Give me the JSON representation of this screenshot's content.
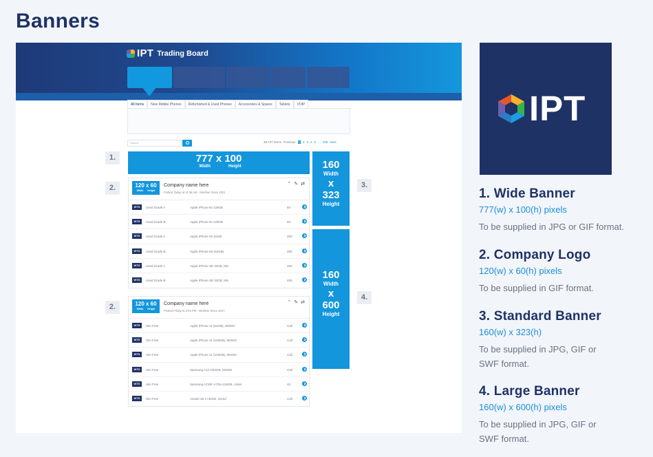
{
  "page": {
    "title": "Banners"
  },
  "mockup": {
    "logo_text": "IPT",
    "board_title": "Trading Board",
    "subtabs": [
      "All Items",
      "New Mobile Phones",
      "Refurbished & Used Phones",
      "Accessories & Spares",
      "Tablets",
      "VOIP"
    ],
    "search_placeholder": "Search",
    "pager": {
      "count": "48,737 Items",
      "prev": "Previous",
      "pages": [
        "1",
        "2",
        "3",
        "4",
        "5"
      ],
      "ellipsis": "...",
      "last": "488",
      "next": "Next"
    },
    "wide_banner": {
      "main": "777 x 100",
      "width_label": "Width",
      "height_label": "Height"
    },
    "standard_banner": {
      "w": "160",
      "width_label": "Width",
      "x": "x",
      "h": "323",
      "height_label": "Height"
    },
    "large_banner": {
      "w": "160",
      "width_label": "Width",
      "x": "x",
      "h": "600",
      "height_label": "Height"
    },
    "labels": [
      "1.",
      "2.",
      "3.",
      "2.",
      "4."
    ],
    "companies": [
      {
        "logo": {
          "main": "120 x 60",
          "w": "Width",
          "h": "Height"
        },
        "name": "Company name here",
        "meta": "Posted Today at 11:46 AM - Member Since 2021",
        "rows": [
          {
            "tag": "WTS",
            "cond": "Used Grade A",
            "product": "Apple iPhone 6s 128GB",
            "qty": "50"
          },
          {
            "tag": "WTS",
            "cond": "Used Grade B",
            "product": "Apple iPhone 6s 128GB",
            "qty": "50"
          },
          {
            "tag": "WTS",
            "cond": "Used Grade A",
            "product": "Apple iPhone 6S 64GB",
            "qty": "200"
          },
          {
            "tag": "WTS",
            "cond": "Used Grade B",
            "product": "Apple iPhone 6S (64GB)",
            "qty": "250"
          },
          {
            "tag": "WTS",
            "cond": "Used Grade A",
            "product": "Apple iPhone SE 32GB, Mix",
            "qty": "250"
          },
          {
            "tag": "WTS",
            "cond": "Used Grade B",
            "product": "Apple iPhone SE 32GB, Mix",
            "qty": "400"
          }
        ]
      },
      {
        "logo": {
          "main": "120 x 60",
          "w": "Width",
          "h": "Height"
        },
        "name": "Company name here",
        "meta": "Posted Friday at 3:04 PM - Member Since 2017",
        "rows": [
          {
            "tag": "WTS",
            "cond": "Sim Free",
            "product": "Apple iPhone 11 (64GB), MIXED",
            "qty": "Call"
          },
          {
            "tag": "WTS",
            "cond": "Sim Free",
            "product": "Apple iPhone 11 (128GB), MIXED",
            "qty": "Call"
          },
          {
            "tag": "WTS",
            "cond": "Sim Free",
            "product": "Apple iPhone 11 (128GB), MIXED",
            "qty": "Call"
          },
          {
            "tag": "WTS",
            "cond": "Sim Free",
            "product": "Samsung A12 4/64GB, MIXED",
            "qty": "Call"
          },
          {
            "tag": "WTS",
            "cond": "Sim Free",
            "product": "Samsung A725F A726+128GB, Violet",
            "qty": "40"
          },
          {
            "tag": "WTS",
            "cond": "Sim Free",
            "product": "Alcatel 1B 2+32GB, mixed",
            "qty": "Call"
          }
        ]
      }
    ]
  },
  "brand": {
    "logo_text": "IPT",
    "navy": "#1f3266",
    "blue": "#1396dc"
  },
  "specs": [
    {
      "title": "1. Wide Banner",
      "dim": "777(w) x 100(h) pixels",
      "note": "To be supplied in JPG or GIF format."
    },
    {
      "title": "2. Company Logo",
      "dim": "120(w) x 60(h) pixels",
      "note": "To be supplied in GIF format."
    },
    {
      "title": "3. Standard Banner",
      "dim": "160(w) x 323(h)",
      "note": "To be supplied in JPG, GIF or SWF format."
    },
    {
      "title": "4. Large Banner",
      "dim": "160(w) x 600(h) pixels",
      "note": "To be supplied in JPG, GIF or SWF format."
    }
  ]
}
